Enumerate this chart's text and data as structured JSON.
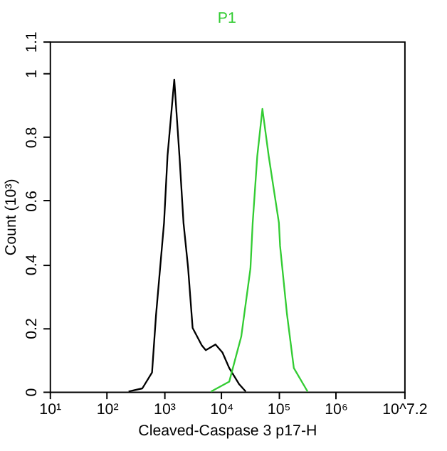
{
  "chart_data": {
    "type": "line",
    "title": "P1",
    "xlabel": "Cleaved-Caspase 3 p17-H",
    "ylabel": "Count (10³)",
    "log": "x",
    "xlim": [
      10,
      15848932
    ],
    "ylim": [
      0,
      1.1
    ],
    "xticks": [
      {
        "value": 10,
        "label": "10¹"
      },
      {
        "value": 100,
        "label": "10²"
      },
      {
        "value": 1000,
        "label": "10³"
      },
      {
        "value": 10000,
        "label": "10⁴"
      },
      {
        "value": 100000,
        "label": "10⁵"
      },
      {
        "value": 1000000,
        "label": "10⁶"
      },
      {
        "value": 15848932,
        "label": "10^7.2"
      }
    ],
    "yticks": [
      0,
      0.2,
      0.4,
      0.6,
      0.8,
      1,
      1.1
    ],
    "grid": false,
    "marker": "none",
    "line_style": "solid",
    "series": [
      {
        "color": "#000000",
        "x": [
          240,
          417,
          617,
          724,
          1000,
          1150,
          1510,
          1860,
          2190,
          2630,
          3160,
          4570,
          5370,
          7940,
          10500,
          13800,
          20400,
          26900
        ],
        "values": [
          0,
          0.01,
          0.06,
          0.24,
          0.53,
          0.74,
          0.98,
          0.74,
          0.53,
          0.39,
          0.2,
          0.145,
          0.13,
          0.148,
          0.123,
          0.074,
          0.024,
          0
        ]
      },
      {
        "color": "#33cc33",
        "x": [
          6610,
          13800,
          22400,
          32400,
          35500,
          42700,
          52500,
          67600,
          102000,
          107000,
          141000,
          186000,
          324000
        ],
        "values": [
          0,
          0.031,
          0.173,
          0.386,
          0.53,
          0.74,
          0.888,
          0.74,
          0.53,
          0.457,
          0.244,
          0.074,
          0
        ]
      }
    ]
  }
}
